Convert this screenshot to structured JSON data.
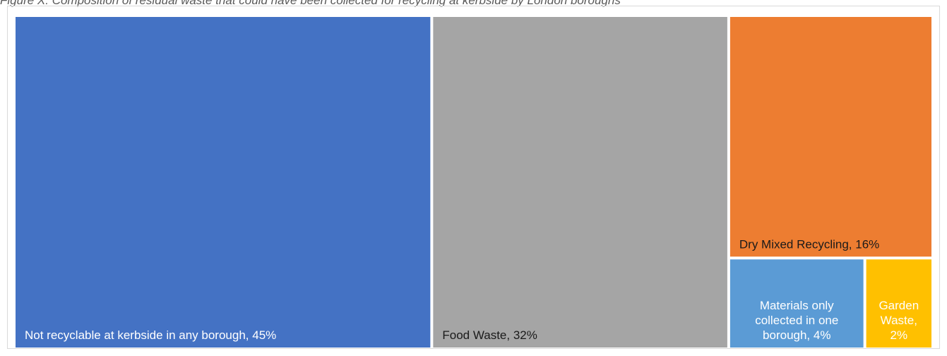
{
  "caption": "Figure X: Composition of residual waste that could have been collected for recycling at kerbside by London boroughs",
  "chart_data": {
    "type": "treemap",
    "items": [
      {
        "name": "Not recyclable at kerbside in any borough",
        "value": 45,
        "label": "Not recyclable at kerbside in any borough, 45%",
        "color": "#4472C4",
        "text_color": "#ffffff"
      },
      {
        "name": "Food Waste",
        "value": 32,
        "label": "Food Waste, 32%",
        "color": "#A5A5A5",
        "text_color": "#1a1a1a"
      },
      {
        "name": "Dry Mixed Recycling",
        "value": 16,
        "label": "Dry Mixed Recycling, 16%",
        "color": "#ED7D31",
        "text_color": "#1a1a1a"
      },
      {
        "name": "Materials only collected in one borough",
        "value": 4,
        "label_lines": [
          "Materials only",
          "collected in one",
          "borough, 4%"
        ],
        "color": "#5B9BD5",
        "text_color": "#ffffff"
      },
      {
        "name": "Garden Waste",
        "value": 2,
        "label_lines": [
          "Garden",
          "Waste,",
          "2%"
        ],
        "color": "#FFC000",
        "text_color": "#ffffff"
      }
    ]
  }
}
